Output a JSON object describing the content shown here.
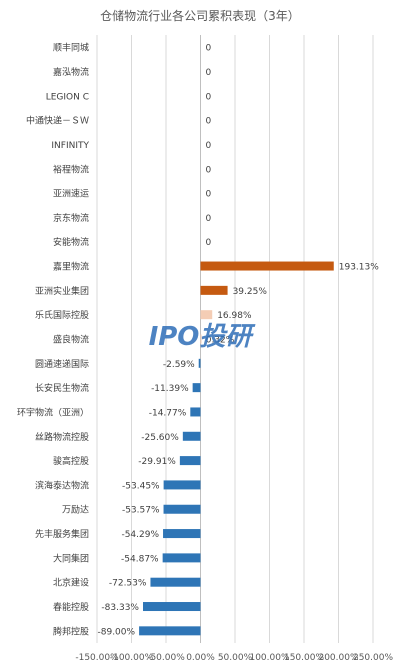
{
  "chart_data": {
    "type": "bar",
    "orientation": "horizontal",
    "title": "仓储物流行业各公司累积表现（3年）",
    "categories": [
      "顺丰同城",
      "嘉泓物流",
      "LEGION C",
      "中通快递－ＳＷ",
      "INFINITY",
      "裕程物流",
      "亚洲速运",
      "京东物流",
      "安能物流",
      "嘉里物流",
      "亚洲实业集团",
      "乐氏国际控股",
      "盛良物流",
      "圆通速递国际",
      "长安民生物流",
      "环宇物流（亚洲）",
      "丝路物流控股",
      "骏高控股",
      "滨海泰达物流",
      "万励达",
      "先丰服务集团",
      "大同集团",
      "北京建设",
      "春能控股",
      "腾邦控股"
    ],
    "values": [
      0,
      0,
      0,
      0,
      0,
      0,
      0,
      0,
      0,
      193.13,
      39.25,
      16.98,
      0.32,
      -2.59,
      -11.39,
      -14.77,
      -25.6,
      -29.91,
      -53.45,
      -53.57,
      -54.29,
      -54.87,
      -72.53,
      -83.33,
      -89.0
    ],
    "value_labels": [
      "0",
      "0",
      "0",
      "0",
      "0",
      "0",
      "0",
      "0",
      "0",
      "193.13%",
      "39.25%",
      "16.98%",
      "0.32%",
      "-2.59%",
      "-11.39%",
      "-14.77%",
      "-25.60%",
      "-29.91%",
      "-53.45%",
      "-53.57%",
      "-54.29%",
      "-54.87%",
      "-72.53%",
      "-83.33%",
      "-89.00%"
    ],
    "xlim": [
      -150,
      250
    ],
    "xticks": [
      -150,
      -100,
      -50,
      0,
      50,
      100,
      150,
      200,
      250
    ],
    "xtick_labels": [
      "-150.00%",
      "-100.00%",
      "-50.00%",
      "0.00%",
      "50.00%",
      "100.00%",
      "150.00%",
      "200.00%",
      "250.00%"
    ],
    "grid": true,
    "colors": {
      "positive_main": "#c55a11",
      "positive_light": "#f4cdb5",
      "negative": "#2e75b6",
      "grid": "#d9d9d9"
    },
    "watermark": "IPO投研"
  }
}
